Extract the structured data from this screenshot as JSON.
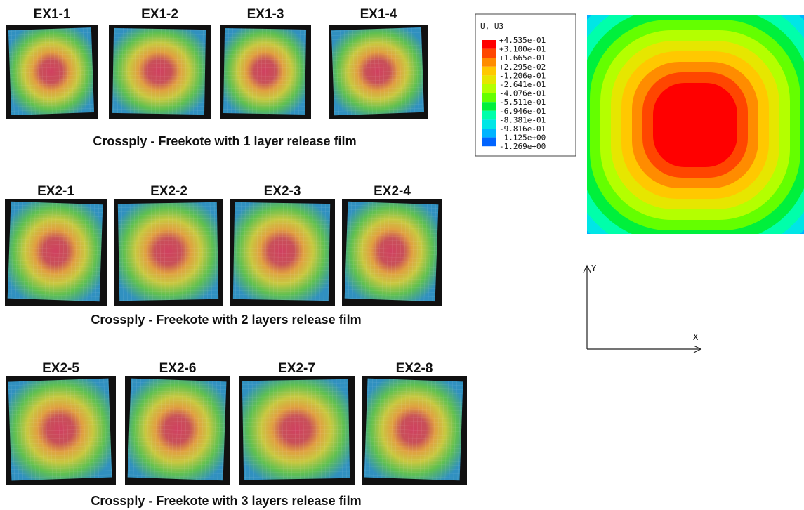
{
  "groups": [
    {
      "specimens": [
        "EX1-1",
        "EX1-2",
        "EX1-3",
        "EX1-4"
      ],
      "caption": "Crossply - Freekote with 1 layer release film"
    },
    {
      "specimens": [
        "EX2-1",
        "EX2-2",
        "EX2-3",
        "EX2-4"
      ],
      "caption": "Crossply - Freekote with 2 layers release film"
    },
    {
      "specimens": [
        "EX2-5",
        "EX2-6",
        "EX2-7",
        "EX2-8"
      ],
      "caption": "Crossply - Freekote with 3 layers release film"
    }
  ],
  "legend": {
    "title": "U, U3",
    "values": [
      "+4.535e-01",
      "+3.100e-01",
      "+1.665e-01",
      "+2.295e-02",
      "-1.206e-01",
      "-2.641e-01",
      "-4.076e-01",
      "-5.511e-01",
      "-6.946e-01",
      "-8.381e-01",
      "-9.816e-01",
      "-1.125e+00",
      "-1.269e+00"
    ]
  },
  "axes": {
    "x": "X",
    "y": "Y"
  }
}
